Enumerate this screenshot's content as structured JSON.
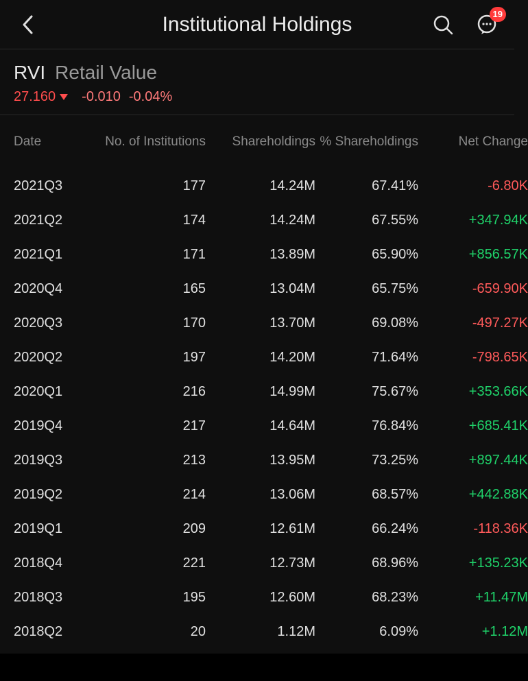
{
  "header": {
    "title": "Institutional Holdings",
    "badge_count": "19"
  },
  "ticker": {
    "symbol": "RVI",
    "name": "Retail Value",
    "price": "27.160",
    "change_abs": "-0.010",
    "change_pct": "-0.04%"
  },
  "columns": {
    "date": "Date",
    "institutions": "No. of Institutions",
    "shareholdings": "Shareholdings",
    "pct_shareholdings": "% Shareholdings",
    "net_change": "Net Change"
  },
  "colors": {
    "background": "#0f0f0f",
    "text_primary": "#e0e0e0",
    "text_muted": "#8a8a8a",
    "positive": "#1fd36a",
    "negative": "#ff5a5a",
    "badge": "#ff3b3b",
    "divider": "#2a2a2a"
  },
  "rows": [
    {
      "date": "2021Q3",
      "institutions": "177",
      "shareholdings": "14.24M",
      "pct": "67.41%",
      "net": "-6.80K",
      "dir": "neg"
    },
    {
      "date": "2021Q2",
      "institutions": "174",
      "shareholdings": "14.24M",
      "pct": "67.55%",
      "net": "+347.94K",
      "dir": "pos"
    },
    {
      "date": "2021Q1",
      "institutions": "171",
      "shareholdings": "13.89M",
      "pct": "65.90%",
      "net": "+856.57K",
      "dir": "pos"
    },
    {
      "date": "2020Q4",
      "institutions": "165",
      "shareholdings": "13.04M",
      "pct": "65.75%",
      "net": "-659.90K",
      "dir": "neg"
    },
    {
      "date": "2020Q3",
      "institutions": "170",
      "shareholdings": "13.70M",
      "pct": "69.08%",
      "net": "-497.27K",
      "dir": "neg"
    },
    {
      "date": "2020Q2",
      "institutions": "197",
      "shareholdings": "14.20M",
      "pct": "71.64%",
      "net": "-798.65K",
      "dir": "neg"
    },
    {
      "date": "2020Q1",
      "institutions": "216",
      "shareholdings": "14.99M",
      "pct": "75.67%",
      "net": "+353.66K",
      "dir": "pos"
    },
    {
      "date": "2019Q4",
      "institutions": "217",
      "shareholdings": "14.64M",
      "pct": "76.84%",
      "net": "+685.41K",
      "dir": "pos"
    },
    {
      "date": "2019Q3",
      "institutions": "213",
      "shareholdings": "13.95M",
      "pct": "73.25%",
      "net": "+897.44K",
      "dir": "pos"
    },
    {
      "date": "2019Q2",
      "institutions": "214",
      "shareholdings": "13.06M",
      "pct": "68.57%",
      "net": "+442.88K",
      "dir": "pos"
    },
    {
      "date": "2019Q1",
      "institutions": "209",
      "shareholdings": "12.61M",
      "pct": "66.24%",
      "net": "-118.36K",
      "dir": "neg"
    },
    {
      "date": "2018Q4",
      "institutions": "221",
      "shareholdings": "12.73M",
      "pct": "68.96%",
      "net": "+135.23K",
      "dir": "pos"
    },
    {
      "date": "2018Q3",
      "institutions": "195",
      "shareholdings": "12.60M",
      "pct": "68.23%",
      "net": "+11.47M",
      "dir": "pos"
    },
    {
      "date": "2018Q2",
      "institutions": "20",
      "shareholdings": "1.12M",
      "pct": "6.09%",
      "net": "+1.12M",
      "dir": "pos"
    }
  ]
}
